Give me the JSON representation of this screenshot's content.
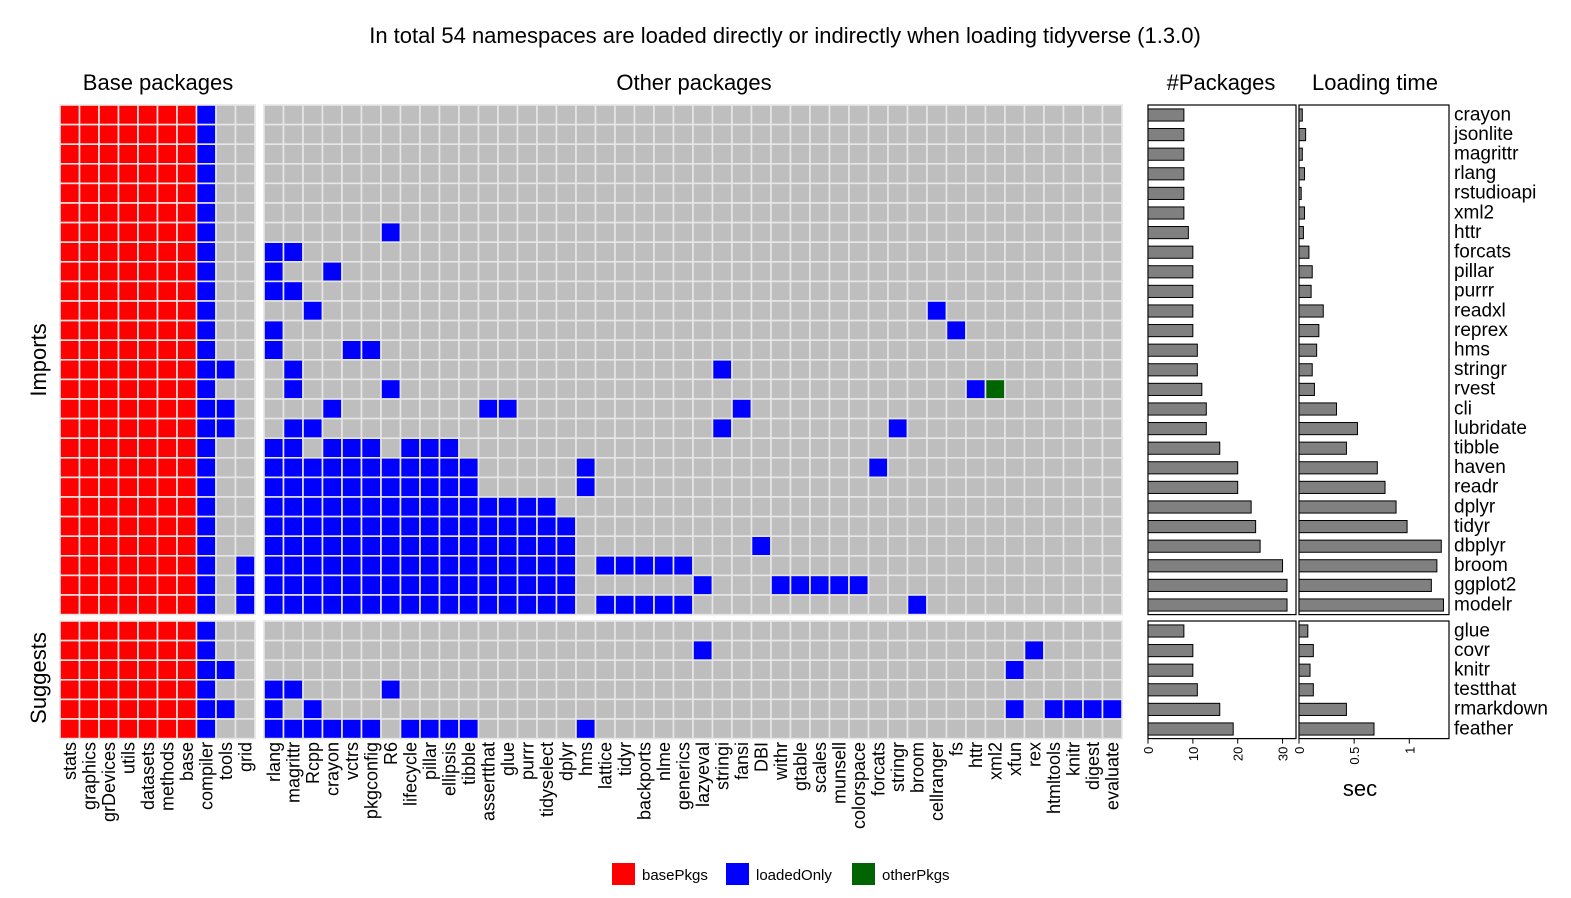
{
  "title": "In total 54 namespaces are loaded directly or indirectly when loading tidyverse (1.3.0)",
  "panel_titles": {
    "base": "Base packages",
    "other": "Other packages",
    "count": "#Packages",
    "time": "Loading time"
  },
  "row_group_labels": {
    "imports": "Imports",
    "suggests": "Suggests"
  },
  "chart_data": [
    {
      "type": "heatmap",
      "base_columns": [
        "stats",
        "graphics",
        "grDevices",
        "utils",
        "datasets",
        "methods",
        "base",
        "compiler",
        "tools",
        "grid"
      ],
      "other_columns": [
        "rlang",
        "magrittr",
        "Rcpp",
        "crayon",
        "vctrs",
        "pkgconfig",
        "R6",
        "lifecycle",
        "pillar",
        "ellipsis",
        "tibble",
        "assertthat",
        "glue",
        "purrr",
        "tidyselect",
        "dplyr",
        "hms",
        "lattice",
        "tidyr",
        "backports",
        "nlme",
        "generics",
        "lazyeval",
        "stringi",
        "fansi",
        "DBI",
        "withr",
        "gtable",
        "scales",
        "munsell",
        "colorspace",
        "forcats",
        "stringr",
        "broom",
        "cellranger",
        "fs",
        "httr",
        "xml2",
        "xfun",
        "rex",
        "htmltools",
        "knitr",
        "digest",
        "evaluate"
      ],
      "imports_rows": [
        "crayon",
        "jsonlite",
        "magrittr",
        "rlang",
        "rstudioapi",
        "xml2",
        "httr",
        "forcats",
        "pillar",
        "purrr",
        "readxl",
        "reprex",
        "hms",
        "stringr",
        "rvest",
        "cli",
        "lubridate",
        "tibble",
        "haven",
        "readr",
        "dplyr",
        "tidyr",
        "dbplyr",
        "broom",
        "ggplot2",
        "modelr"
      ],
      "suggests_rows": [
        "glue",
        "covr",
        "knitr",
        "testthat",
        "rmarkdown",
        "feather"
      ],
      "legend": [
        {
          "label": "basePkgs",
          "color": "#ff0000"
        },
        {
          "label": "loadedOnly",
          "color": "#0000ff"
        },
        {
          "label": "otherPkgs",
          "color": "#006400"
        }
      ],
      "background_color": "#bebebe",
      "cells": {
        "httr": {
          "R6": "l"
        },
        "forcats": {
          "rlang": "l",
          "magrittr": "l"
        },
        "pillar": {
          "rlang": "l",
          "crayon": "l"
        },
        "purrr": {
          "rlang": "l",
          "magrittr": "l"
        },
        "readxl": {
          "Rcpp": "l",
          "cellranger": "l"
        },
        "reprex": {
          "rlang": "l",
          "fs": "l"
        },
        "hms": {
          "rlang": "l",
          "vctrs": "l",
          "pkgconfig": "l"
        },
        "stringr": {
          "tools": "l",
          "magrittr": "l",
          "stringi": "l"
        },
        "rvest": {
          "magrittr": "l",
          "R6": "l",
          "httr": "l",
          "xml2": "o"
        },
        "cli": {
          "tools": "l",
          "crayon": "l",
          "assertthat": "l",
          "glue": "l",
          "fansi": "l"
        },
        "lubridate": {
          "tools": "l",
          "magrittr": "l",
          "Rcpp": "l",
          "stringi": "l",
          "stringr": "l"
        },
        "tibble": {
          "rlang": "l",
          "magrittr": "l",
          "crayon": "l",
          "vctrs": "l",
          "pkgconfig": "l",
          "lifecycle": "l",
          "pillar": "l",
          "ellipsis": "l"
        },
        "haven": {
          "rlang": "l",
          "magrittr": "l",
          "Rcpp": "l",
          "crayon": "l",
          "vctrs": "l",
          "pkgconfig": "l",
          "R6": "l",
          "lifecycle": "l",
          "pillar": "l",
          "ellipsis": "l",
          "tibble": "l",
          "hms": "l",
          "forcats": "l"
        },
        "readr": {
          "rlang": "l",
          "magrittr": "l",
          "Rcpp": "l",
          "crayon": "l",
          "vctrs": "l",
          "pkgconfig": "l",
          "R6": "l",
          "lifecycle": "l",
          "pillar": "l",
          "ellipsis": "l",
          "tibble": "l",
          "hms": "l"
        },
        "dplyr": {
          "rlang": "l",
          "magrittr": "l",
          "Rcpp": "l",
          "crayon": "l",
          "vctrs": "l",
          "pkgconfig": "l",
          "R6": "l",
          "lifecycle": "l",
          "pillar": "l",
          "ellipsis": "l",
          "tibble": "l",
          "assertthat": "l",
          "glue": "l",
          "purrr": "l",
          "tidyselect": "l"
        },
        "tidyr": {
          "rlang": "l",
          "magrittr": "l",
          "Rcpp": "l",
          "crayon": "l",
          "vctrs": "l",
          "pkgconfig": "l",
          "R6": "l",
          "lifecycle": "l",
          "pillar": "l",
          "ellipsis": "l",
          "tibble": "l",
          "assertthat": "l",
          "glue": "l",
          "purrr": "l",
          "tidyselect": "l",
          "dplyr": "l"
        },
        "dbplyr": {
          "rlang": "l",
          "magrittr": "l",
          "Rcpp": "l",
          "crayon": "l",
          "vctrs": "l",
          "pkgconfig": "l",
          "R6": "l",
          "lifecycle": "l",
          "pillar": "l",
          "ellipsis": "l",
          "tibble": "l",
          "assertthat": "l",
          "glue": "l",
          "purrr": "l",
          "tidyselect": "l",
          "dplyr": "l",
          "DBI": "l"
        },
        "broom": {
          "grid": "l",
          "rlang": "l",
          "magrittr": "l",
          "Rcpp": "l",
          "crayon": "l",
          "vctrs": "l",
          "pkgconfig": "l",
          "R6": "l",
          "lifecycle": "l",
          "pillar": "l",
          "ellipsis": "l",
          "tibble": "l",
          "assertthat": "l",
          "glue": "l",
          "purrr": "l",
          "tidyselect": "l",
          "dplyr": "l",
          "lattice": "l",
          "tidyr": "l",
          "backports": "l",
          "nlme": "l",
          "generics": "l"
        },
        "ggplot2": {
          "grid": "l",
          "rlang": "l",
          "magrittr": "l",
          "Rcpp": "l",
          "crayon": "l",
          "vctrs": "l",
          "pkgconfig": "l",
          "R6": "l",
          "lifecycle": "l",
          "pillar": "l",
          "ellipsis": "l",
          "tibble": "l",
          "assertthat": "l",
          "glue": "l",
          "purrr": "l",
          "tidyselect": "l",
          "dplyr": "l",
          "lazyeval": "l",
          "withr": "l",
          "gtable": "l",
          "scales": "l",
          "munsell": "l",
          "colorspace": "l"
        },
        "modelr": {
          "grid": "l",
          "rlang": "l",
          "magrittr": "l",
          "Rcpp": "l",
          "crayon": "l",
          "vctrs": "l",
          "pkgconfig": "l",
          "R6": "l",
          "lifecycle": "l",
          "pillar": "l",
          "ellipsis": "l",
          "tibble": "l",
          "assertthat": "l",
          "glue": "l",
          "purrr": "l",
          "tidyselect": "l",
          "dplyr": "l",
          "lattice": "l",
          "tidyr": "l",
          "backports": "l",
          "nlme": "l",
          "generics": "l",
          "broom": "l"
        },
        "covr": {
          "lazyeval": "l",
          "rex": "l"
        },
        "knitr": {
          "tools": "l",
          "xfun": "l"
        },
        "testthat": {
          "rlang": "l",
          "magrittr": "l",
          "R6": "l"
        },
        "rmarkdown": {
          "tools": "l",
          "rlang": "l",
          "Rcpp": "l",
          "xfun": "l",
          "htmltools": "l",
          "knitr": "l",
          "digest": "l",
          "evaluate": "l"
        },
        "feather": {
          "rlang": "l",
          "magrittr": "l",
          "Rcpp": "l",
          "crayon": "l",
          "vctrs": "l",
          "pkgconfig": "l",
          "lifecycle": "l",
          "pillar": "l",
          "ellipsis": "l",
          "tibble": "l",
          "hms": "l"
        }
      }
    },
    {
      "type": "bar",
      "orientation": "horizontal",
      "title": "#Packages",
      "xlabel": "",
      "xlim": [
        0,
        33
      ],
      "xticks": [
        0,
        10,
        20,
        30
      ],
      "categories": [
        "crayon",
        "jsonlite",
        "magrittr",
        "rlang",
        "rstudioapi",
        "xml2",
        "httr",
        "forcats",
        "pillar",
        "purrr",
        "readxl",
        "reprex",
        "hms",
        "stringr",
        "rvest",
        "cli",
        "lubridate",
        "tibble",
        "haven",
        "readr",
        "dplyr",
        "tidyr",
        "dbplyr",
        "broom",
        "ggplot2",
        "modelr",
        "glue",
        "covr",
        "knitr",
        "testthat",
        "rmarkdown",
        "feather"
      ],
      "values": [
        8,
        8,
        8,
        8,
        8,
        8,
        9,
        10,
        10,
        10,
        10,
        10,
        11,
        11,
        12,
        13,
        13,
        16,
        20,
        20,
        23,
        24,
        25,
        30,
        31,
        31,
        8,
        10,
        10,
        11,
        16,
        19
      ]
    },
    {
      "type": "bar",
      "orientation": "horizontal",
      "title": "Loading time",
      "xlabel": "sec",
      "xlim": [
        0,
        1.36
      ],
      "xticks": [
        0,
        0.5,
        1
      ],
      "xtick_labels": [
        "0",
        "0.5",
        "1"
      ],
      "categories": [
        "crayon",
        "jsonlite",
        "magrittr",
        "rlang",
        "rstudioapi",
        "xml2",
        "httr",
        "forcats",
        "pillar",
        "purrr",
        "readxl",
        "reprex",
        "hms",
        "stringr",
        "rvest",
        "cli",
        "lubridate",
        "tibble",
        "haven",
        "readr",
        "dplyr",
        "tidyr",
        "dbplyr",
        "broom",
        "ggplot2",
        "modelr",
        "glue",
        "covr",
        "knitr",
        "testthat",
        "rmarkdown",
        "feather"
      ],
      "values": [
        0.03,
        0.06,
        0.03,
        0.05,
        0.02,
        0.05,
        0.04,
        0.09,
        0.12,
        0.11,
        0.22,
        0.18,
        0.16,
        0.12,
        0.14,
        0.34,
        0.53,
        0.43,
        0.71,
        0.78,
        0.88,
        0.98,
        1.29,
        1.25,
        1.2,
        1.31,
        0.08,
        0.13,
        0.1,
        0.13,
        0.43,
        0.68
      ]
    }
  ]
}
